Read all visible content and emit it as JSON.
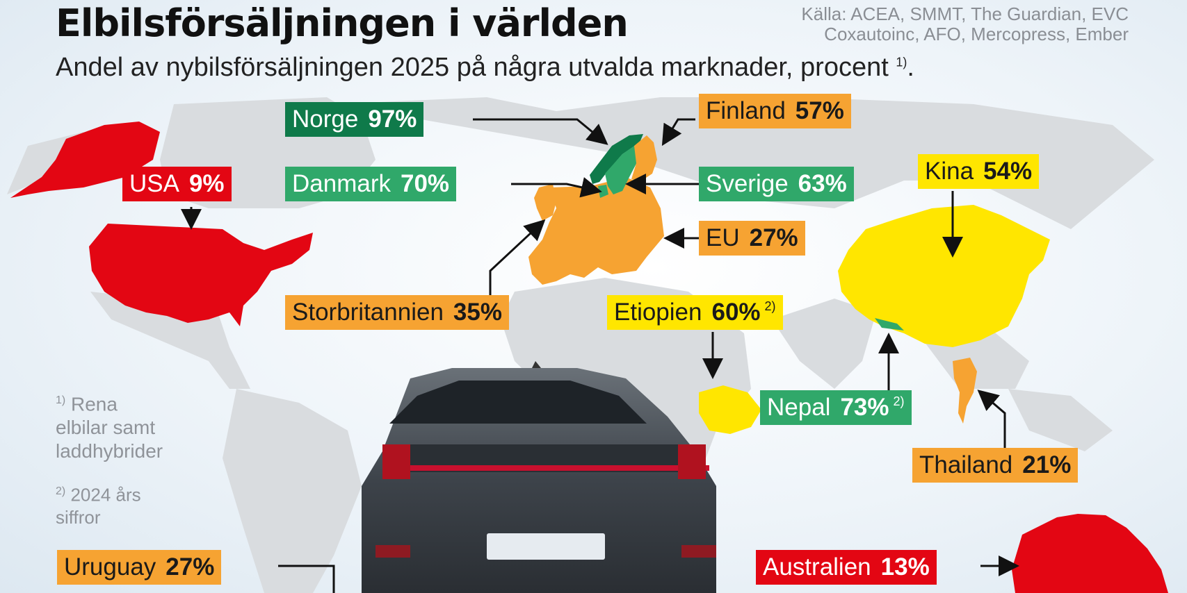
{
  "header": {
    "title": "Elbilsförsäljningen i världen",
    "source_line1": "Källa: ACEA, SMMT, The Guardian, EVC",
    "source_line2": "Coxautoinc, AFO, Mercopress, Ember",
    "subtitle": "Andel av nybilsförsäljningen 2025 på några utvalda marknader, procent",
    "subtitle_note": "1)",
    "subtitle_end": "."
  },
  "markets": [
    {
      "id": "norge",
      "name": "Norge",
      "value": "97%",
      "share": 97,
      "color": "#0f7a4a"
    },
    {
      "id": "finland",
      "name": "Finland",
      "value": "57%",
      "share": 57,
      "color": "#f6a332"
    },
    {
      "id": "usa",
      "name": "USA",
      "value": "9%",
      "share": 9,
      "color": "#e30613"
    },
    {
      "id": "danmark",
      "name": "Danmark",
      "value": "70%",
      "share": 70,
      "color": "#30a86a"
    },
    {
      "id": "sverige",
      "name": "Sverige",
      "value": "63%",
      "share": 63,
      "color": "#30a86a"
    },
    {
      "id": "kina",
      "name": "Kina",
      "value": "54%",
      "share": 54,
      "color": "#ffe600"
    },
    {
      "id": "eu",
      "name": "EU",
      "value": "27%",
      "share": 27,
      "color": "#f6a332"
    },
    {
      "id": "storbritannien",
      "name": "Storbritannien",
      "value": "35%",
      "share": 35,
      "color": "#f6a332"
    },
    {
      "id": "etiopien",
      "name": "Etiopien",
      "value": "60%",
      "share": 60,
      "color": "#ffe600",
      "note": "2)"
    },
    {
      "id": "nepal",
      "name": "Nepal",
      "value": "73%",
      "share": 73,
      "color": "#30a86a",
      "note": "2)"
    },
    {
      "id": "thailand",
      "name": "Thailand",
      "value": "21%",
      "share": 21,
      "color": "#f6a332"
    },
    {
      "id": "uruguay",
      "name": "Uruguay",
      "value": "27%",
      "share": 27,
      "color": "#f6a332"
    },
    {
      "id": "australien",
      "name": "Australien",
      "value": "13%",
      "share": 13,
      "color": "#e30613"
    }
  ],
  "footnotes": {
    "n1_mark": "1)",
    "n1_line1": "Rena",
    "n1_line2": "elbilar samt",
    "n1_line3": "laddhybrider",
    "n2_mark": "2)",
    "n2_line1": "2024 års",
    "n2_line2": "siffror"
  },
  "colors": {
    "red": "#e30613",
    "orange": "#f6a332",
    "yellow": "#ffe600",
    "green": "#30a86a",
    "dark_green": "#0f7a4a",
    "land": "#d9dcdf"
  }
}
